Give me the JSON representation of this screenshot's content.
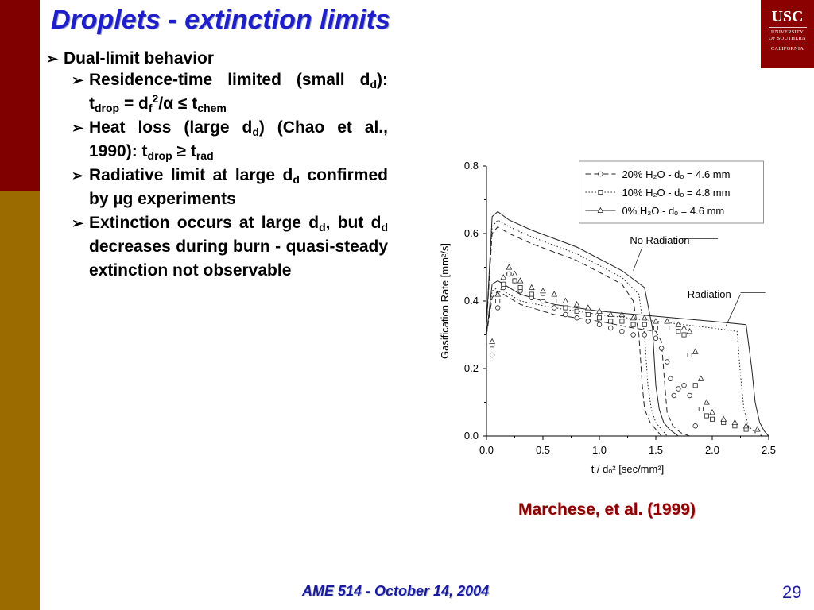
{
  "slide": {
    "title": "Droplets - extinction limits",
    "logo": {
      "big": "USC",
      "small1": "UNIVERSITY",
      "small2": "OF SOUTHERN",
      "small3": "CALIFORNIA"
    },
    "bullet1": "Dual-limit behavior",
    "sub1": {
      "t1": "Residence-time limited (small d",
      "s1": "d",
      "t2": "):  t",
      "s2": "drop",
      "t3": " = d",
      "s3": "f",
      "sup1": "2",
      "t4": "/α ≤ t",
      "s4": "chem"
    },
    "sub2": {
      "t1": "Heat loss (large d",
      "s1": "d",
      "t2": ") (Chao et al., 1990): t",
      "s2": "drop",
      "t3": " ≥ t",
      "s3": "rad"
    },
    "sub3": {
      "t1": "Radiative limit at large d",
      "s1": "d",
      "t2": " confirmed by µg experiments"
    },
    "sub4": {
      "t1": "Extinction occurs at large d",
      "s1": "d",
      "t2": ", but d",
      "s2": "d",
      "t3": " decreases during burn - quasi-steady extinction not observable"
    },
    "citation": "Marchese, et al. (1999)",
    "footer": "AME 514 - October 14, 2004",
    "page_number": "29",
    "colors": {
      "band_top": "#800000",
      "band_bottom": "#9c6b00",
      "title": "#1f1fc9",
      "citation": "#8b0000",
      "footer": "#1a1a9c"
    }
  },
  "chart_data": {
    "type": "line",
    "xlabel": "t / dₒ² [sec/mm²]",
    "ylabel": "Gasification Rate [mm²/s]",
    "xlim": [
      0.0,
      2.5
    ],
    "ylim": [
      0.0,
      0.8
    ],
    "xticks": [
      "0.0",
      "0.5",
      "1.0",
      "1.5",
      "2.0",
      "2.5"
    ],
    "yticks": [
      "0.0",
      "0.2",
      "0.4",
      "0.6",
      "0.8"
    ],
    "grid": false,
    "legend_position": "top-right",
    "legend": [
      "20% H₂O - dₒ = 4.6 mm",
      "10% H₂O - dₒ = 4.8 mm",
      "0% H₂O - dₒ = 4.6 mm"
    ],
    "annotations": [
      "No Radiation",
      "Radiation"
    ],
    "series": [
      {
        "name": "20% H₂O - dₒ = 4.6 mm",
        "group": "No Radiation",
        "style": "dashed",
        "x": [
          0.0,
          0.05,
          0.1,
          0.2,
          0.4,
          0.8,
          1.2,
          1.3,
          1.35,
          1.38,
          1.4,
          1.45,
          1.5,
          1.55
        ],
        "y": [
          0.33,
          0.6,
          0.62,
          0.6,
          0.57,
          0.52,
          0.45,
          0.4,
          0.3,
          0.15,
          0.08,
          0.04,
          0.02,
          0.0
        ]
      },
      {
        "name": "10% H₂O - dₒ = 4.8 mm",
        "group": "No Radiation",
        "style": "dotted",
        "x": [
          0.0,
          0.05,
          0.1,
          0.2,
          0.4,
          0.8,
          1.2,
          1.35,
          1.4,
          1.43,
          1.46,
          1.5,
          1.55,
          1.6
        ],
        "y": [
          0.33,
          0.62,
          0.64,
          0.62,
          0.59,
          0.54,
          0.47,
          0.42,
          0.3,
          0.15,
          0.08,
          0.04,
          0.02,
          0.0
        ]
      },
      {
        "name": "0% H₂O - dₒ = 4.6 mm",
        "group": "No Radiation",
        "style": "solid",
        "x": [
          0.0,
          0.05,
          0.1,
          0.2,
          0.4,
          0.8,
          1.2,
          1.4,
          1.47,
          1.5,
          1.53,
          1.57,
          1.62,
          1.7
        ],
        "y": [
          0.33,
          0.65,
          0.665,
          0.64,
          0.61,
          0.56,
          0.49,
          0.44,
          0.32,
          0.15,
          0.08,
          0.04,
          0.02,
          0.0
        ]
      },
      {
        "name": "20% H₂O - dₒ = 4.6 mm",
        "group": "Radiation",
        "style": "dashed",
        "x": [
          0.0,
          0.05,
          0.1,
          0.3,
          0.6,
          1.0,
          1.3,
          1.5,
          1.55,
          1.58,
          1.6,
          1.65,
          1.72,
          1.8
        ],
        "y": [
          0.3,
          0.41,
          0.43,
          0.39,
          0.36,
          0.34,
          0.32,
          0.31,
          0.28,
          0.15,
          0.07,
          0.03,
          0.01,
          0.0
        ]
      },
      {
        "name": "10% H₂O - dₒ = 4.8 mm",
        "group": "Radiation",
        "style": "dotted",
        "x": [
          0.0,
          0.05,
          0.1,
          0.3,
          0.6,
          1.0,
          1.5,
          2.0,
          2.22,
          2.25,
          2.28,
          2.32,
          2.38,
          2.45
        ],
        "y": [
          0.3,
          0.43,
          0.44,
          0.4,
          0.38,
          0.36,
          0.34,
          0.32,
          0.31,
          0.18,
          0.08,
          0.03,
          0.01,
          0.0
        ]
      },
      {
        "name": "0% H₂O - dₒ = 4.6 mm",
        "group": "Radiation",
        "style": "solid",
        "x": [
          0.0,
          0.05,
          0.1,
          0.3,
          0.6,
          1.0,
          1.5,
          2.0,
          2.3,
          2.35,
          2.38,
          2.42,
          2.46,
          2.5
        ],
        "y": [
          0.3,
          0.45,
          0.46,
          0.42,
          0.39,
          0.37,
          0.355,
          0.34,
          0.33,
          0.2,
          0.1,
          0.04,
          0.015,
          0.0
        ]
      },
      {
        "name": "20% H₂O - dₒ = 4.6 mm",
        "group": "Experiment",
        "marker": "circle",
        "x": [
          0.05,
          0.1,
          0.15,
          0.2,
          0.25,
          0.3,
          0.4,
          0.5,
          0.6,
          0.7,
          0.8,
          0.9,
          1.0,
          1.1,
          1.2,
          1.3,
          1.4,
          1.5,
          1.55,
          1.6,
          1.63,
          1.66,
          1.7,
          1.75,
          1.8,
          1.85
        ],
        "y": [
          0.24,
          0.38,
          0.44,
          0.48,
          0.46,
          0.43,
          0.41,
          0.4,
          0.38,
          0.36,
          0.35,
          0.34,
          0.33,
          0.32,
          0.31,
          0.3,
          0.3,
          0.29,
          0.26,
          0.22,
          0.17,
          0.12,
          0.14,
          0.15,
          0.12,
          0.03
        ]
      },
      {
        "name": "10% H₂O - dₒ = 4.8 mm",
        "group": "Experiment",
        "marker": "square",
        "x": [
          0.05,
          0.1,
          0.15,
          0.2,
          0.25,
          0.3,
          0.4,
          0.5,
          0.6,
          0.7,
          0.8,
          0.9,
          1.0,
          1.1,
          1.2,
          1.3,
          1.4,
          1.5,
          1.6,
          1.7,
          1.75,
          1.8,
          1.85,
          1.9,
          1.95,
          2.0,
          2.1,
          2.2,
          2.3
        ],
        "y": [
          0.27,
          0.4,
          0.45,
          0.48,
          0.46,
          0.44,
          0.42,
          0.41,
          0.4,
          0.38,
          0.37,
          0.36,
          0.35,
          0.34,
          0.34,
          0.33,
          0.33,
          0.32,
          0.32,
          0.31,
          0.3,
          0.24,
          0.15,
          0.08,
          0.06,
          0.05,
          0.04,
          0.03,
          0.02
        ]
      },
      {
        "name": "0% H₂O - dₒ = 4.6 mm",
        "group": "Experiment",
        "marker": "triangle",
        "x": [
          0.05,
          0.1,
          0.15,
          0.2,
          0.25,
          0.3,
          0.4,
          0.5,
          0.6,
          0.7,
          0.8,
          0.9,
          1.0,
          1.1,
          1.2,
          1.3,
          1.4,
          1.5,
          1.6,
          1.7,
          1.75,
          1.8,
          1.85,
          1.9,
          1.95,
          2.0,
          2.1,
          2.2,
          2.3,
          2.4
        ],
        "y": [
          0.28,
          0.42,
          0.47,
          0.5,
          0.48,
          0.46,
          0.44,
          0.43,
          0.42,
          0.4,
          0.39,
          0.38,
          0.37,
          0.36,
          0.36,
          0.35,
          0.35,
          0.34,
          0.34,
          0.33,
          0.32,
          0.31,
          0.25,
          0.17,
          0.1,
          0.07,
          0.05,
          0.04,
          0.03,
          0.02
        ]
      }
    ]
  }
}
